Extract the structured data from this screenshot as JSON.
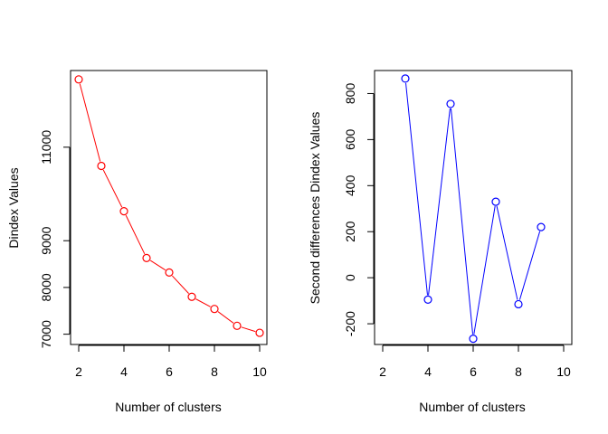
{
  "chart_data": [
    {
      "type": "line",
      "markers": "open-circle",
      "color": "#ff0000",
      "xlabel": "Number of clusters",
      "ylabel": "Dindex Values",
      "xlim": [
        2,
        10
      ],
      "ylim": [
        6780,
        12640
      ],
      "x_ticks": [
        2,
        4,
        6,
        8,
        10
      ],
      "y_ticks": [
        7000,
        8000,
        9000,
        11000
      ],
      "x_tick_labels": [
        "2",
        "4",
        "6",
        "8",
        "10"
      ],
      "y_tick_labels": [
        "7000",
        "8000",
        "9000",
        "11000"
      ],
      "x": [
        2,
        3,
        4,
        5,
        6,
        7,
        8,
        9,
        10
      ],
      "y": [
        12450,
        10600,
        9630,
        8630,
        8320,
        7800,
        7540,
        7180,
        7030
      ],
      "grid": false
    },
    {
      "type": "line",
      "markers": "open-circle",
      "color": "#0000ff",
      "xlabel": "Number of clusters",
      "ylabel": "Second differences Dindex Values",
      "xlim": [
        2,
        10
      ],
      "ylim": [
        -290,
        900
      ],
      "x_ticks": [
        2,
        4,
        6,
        8,
        10
      ],
      "y_ticks": [
        -200,
        0,
        200,
        400,
        600,
        800
      ],
      "x_tick_labels": [
        "2",
        "4",
        "6",
        "8",
        "10"
      ],
      "y_tick_labels": [
        "-200",
        "0",
        "200",
        "400",
        "600",
        "800"
      ],
      "x": [
        3,
        4,
        5,
        6,
        7,
        8,
        9
      ],
      "y": [
        865,
        -95,
        755,
        -265,
        330,
        -115,
        220
      ],
      "grid": false
    }
  ]
}
